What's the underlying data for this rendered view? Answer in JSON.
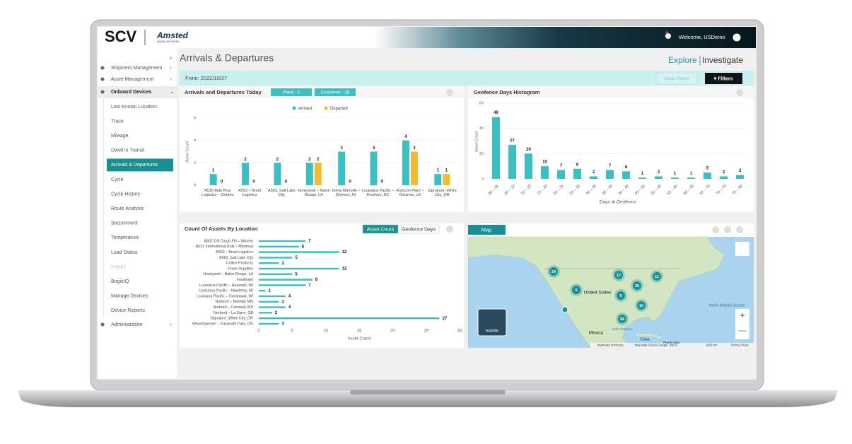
{
  "header": {
    "logo": "SCV",
    "brand": "Amsted",
    "brand_sub": "DIGITAL SOLUTIONS",
    "welcome": "Welcome, USDemo"
  },
  "sidebar": {
    "top": [
      "Shipment Management",
      "Asset Management",
      "Onboard Devices"
    ],
    "items": [
      "Last Known Location",
      "Trace",
      "Mileage",
      "Dwell in Transit",
      "Arrivals & Departures",
      "Cycle",
      "Cycle History",
      "Route Analysis",
      "Securement",
      "Temperature",
      "Load Status",
      "Impact",
      "BogieIQ",
      "Manage Devices",
      "Device Reports"
    ],
    "active": 4,
    "disabled": 11,
    "bottom": "Administration"
  },
  "page": {
    "title": "Arrivals & Departures",
    "explore": "Explore",
    "investigate": "Investigate",
    "from": "From: 2022/10/27",
    "clear_filters": "Clear Filters",
    "filters": "Filters"
  },
  "chart_data": [
    {
      "type": "bar",
      "title": "Arrivals and Departures Today",
      "badges": [
        "Plant : 3",
        "Customer : 28"
      ],
      "categories": [
        "A516 Bulk Plus Logistics – Ontario",
        "A553 – Braid Logistics",
        "A563_Salt Lake City",
        "Honeywell – Baton Rouge, LA",
        "Johns Manville – Bremen, IN",
        "Louisiana Pacific – Roxboro, NC",
        "Rubicon Plant – Geismar, LA",
        "Signature_White City_OR"
      ],
      "series": [
        {
          "name": "Arrived",
          "color": "#3bbfc1",
          "values": [
            1,
            2,
            2,
            2,
            3,
            3,
            4,
            1
          ]
        },
        {
          "name": "Departed",
          "color": "#f6b92f",
          "values": [
            0,
            0,
            0,
            2,
            0,
            0,
            3,
            1
          ]
        }
      ],
      "ylim": [
        0,
        6
      ],
      "yticks": [
        0,
        2,
        4,
        6
      ],
      "ylabel": "Asset Count",
      "grid": true
    },
    {
      "type": "bar",
      "title": "Geofence Days Histogram",
      "categories": [
        "00 – 05",
        "05 – 10",
        "10 – 15",
        "15 – 20",
        "20 – 25",
        "25 – 30",
        "30 – 35",
        "35 – 40",
        "40 – 45",
        "45 – 50",
        "50 – 55",
        "55 – 60",
        "60 – 65",
        "65 – 70",
        "70 – 75",
        "75 – 80"
      ],
      "values": [
        49,
        27,
        20,
        10,
        7,
        8,
        2,
        7,
        6,
        1,
        2,
        1,
        1,
        5,
        2,
        3
      ],
      "color": "#3bbfc1",
      "ylim": [
        0,
        60
      ],
      "yticks": [
        0,
        20,
        40,
        60
      ],
      "xlabel": "Days at Geofence",
      "ylabel": "Asset Count",
      "grid": true
    },
    {
      "type": "barh",
      "title": "Count Of Assets By Location",
      "tabs": [
        "Asset Count",
        "Geofence Days"
      ],
      "categories": [
        "A507 CN Cargo Flo – Warren",
        "A531 International Bulk – Montreal",
        "A553 – Braid Logistics",
        "A563_Salt Lake City",
        "Collins Products",
        "Foam Supplies",
        "Honeywell – Baton Rouge, LA",
        "Insulfoam",
        "Louisiana Pacific – Hayward, WI",
        "Louisiana Pacific – Newberry, MI",
        "Louisiana Pacific – Tomahawk, WI",
        "Norbord – Bemidji, MN",
        "Norbord – Cornwall, MS",
        "Norbord – La Sarre, QB",
        "Signature_White City_OR",
        "Weyerhaeuser – Kalamath Falls, OR"
      ],
      "values": [
        7,
        6,
        12,
        5,
        3,
        12,
        5,
        8,
        7,
        1,
        4,
        3,
        4,
        2,
        27,
        3
      ],
      "color": "#3bbfc1",
      "xlim": [
        0,
        30
      ],
      "xticks": [
        0,
        5,
        10,
        15,
        20,
        25,
        30
      ],
      "xlabel": "Asset Count"
    }
  ],
  "map": {
    "tab": "Map",
    "clusters": [
      24,
      17,
      11,
      5,
      20,
      5,
      10,
      58
    ],
    "places": [
      "United States",
      "Mexico",
      "Cuba",
      "Gulf of Mexico",
      "North Atlantic Ocean",
      "Puerto Rico"
    ],
    "satellite": "Satellite",
    "footer": [
      "Keyboard shortcuts",
      "Map data ©2022 Google, INEGI",
      "1000 km",
      "Terms of Use"
    ]
  }
}
